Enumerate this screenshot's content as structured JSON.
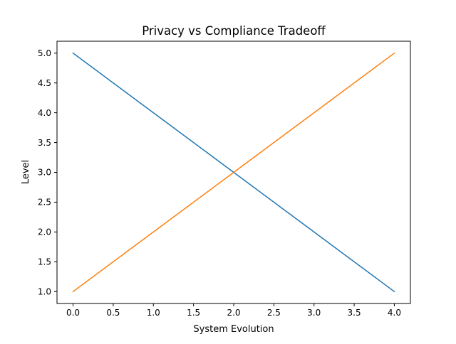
{
  "chart_data": {
    "type": "line",
    "title": "Privacy vs Compliance Tradeoff",
    "xlabel": "System Evolution",
    "ylabel": "Level",
    "xlim": [
      -0.2,
      4.2
    ],
    "ylim": [
      0.8,
      5.2
    ],
    "xticks": [
      0.0,
      0.5,
      1.0,
      1.5,
      2.0,
      2.5,
      3.0,
      3.5,
      4.0
    ],
    "xtick_labels": [
      "0.0",
      "0.5",
      "1.0",
      "1.5",
      "2.0",
      "2.5",
      "3.0",
      "3.5",
      "4.0"
    ],
    "yticks": [
      1.0,
      1.5,
      2.0,
      2.5,
      3.0,
      3.5,
      4.0,
      4.5,
      5.0
    ],
    "ytick_labels": [
      "1.0",
      "1.5",
      "2.0",
      "2.5",
      "3.0",
      "3.5",
      "4.0",
      "4.5",
      "5.0"
    ],
    "grid": false,
    "legend": false,
    "x": [
      0,
      1,
      2,
      3,
      4
    ],
    "series": [
      {
        "values": [
          5,
          4,
          3,
          2,
          1
        ],
        "color": "#1f77b4"
      },
      {
        "values": [
          1,
          2,
          3,
          4,
          5
        ],
        "color": "#ff7f0e"
      }
    ]
  }
}
